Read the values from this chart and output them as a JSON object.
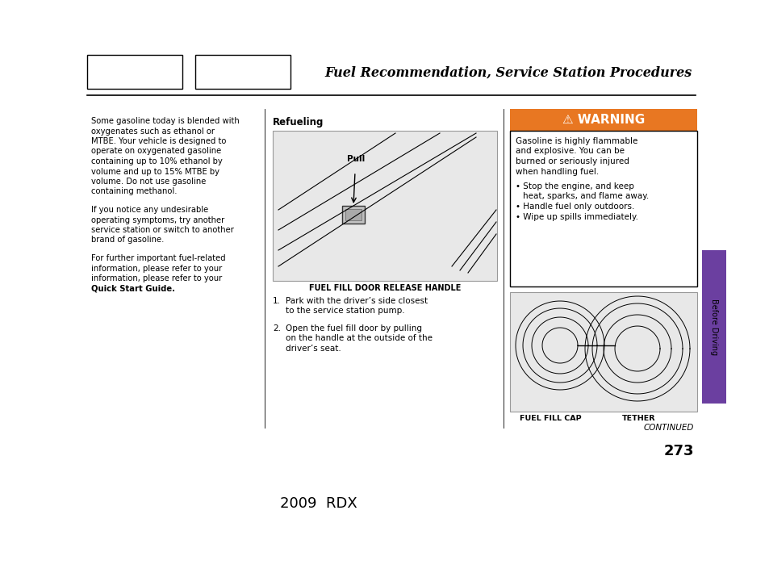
{
  "bg_color": "#ffffff",
  "title": "Fuel Recommendation, Service Station Procedures",
  "title_fontsize": 11,
  "page_number": "273",
  "model_text": "2009  RDX",
  "continued_text": "CONTINUED",
  "warning_bg": "#E87722",
  "sidebar_color": "#6B3FA0",
  "sidebar_text": "Before Driving",
  "left_col_text_p1": "Some gasoline today is blended with\noxygenates such as ethanol or\nMTBE. Your vehicle is designed to\noperate on oxygenated gasoline\ncontaining up to 10% ethanol by\nvolume and up to 15% MTBE by\nvolume. Do not use gasoline\ncontaining methanol.",
  "left_col_text_p2": "If you notice any undesirable\noperating symptoms, try another\nservice station or switch to another\nbrand of gasoline.",
  "left_col_text_p3a": "For further important fuel-related\ninformation, please refer to your\n",
  "left_col_text_p3b": "Quick Start Guide",
  "left_col_text_p3c": ".",
  "refueling_title": "Refueling",
  "img1_caption": "FUEL FILL DOOR RELEASE HANDLE",
  "img2_caption1": "FUEL FILL CAP",
  "img2_caption2": "TETHER",
  "step1_num": "1.",
  "step1": "Park with the driver’s side closest\nto the service station pump.",
  "step2_num": "2.",
  "step2": "Open the fuel fill door by pulling\non the handle at the outside of the\ndriver’s seat.",
  "warning_body": "Gasoline is highly flammable\nand explosive. You can be\nburned or seriously injured\nwhen handling fuel.",
  "warning_bullets": [
    "Stop the engine, and keep\nheat, sparks, and flame away.",
    "Handle fuel only outdoors.",
    "Wipe up spills immediately."
  ]
}
